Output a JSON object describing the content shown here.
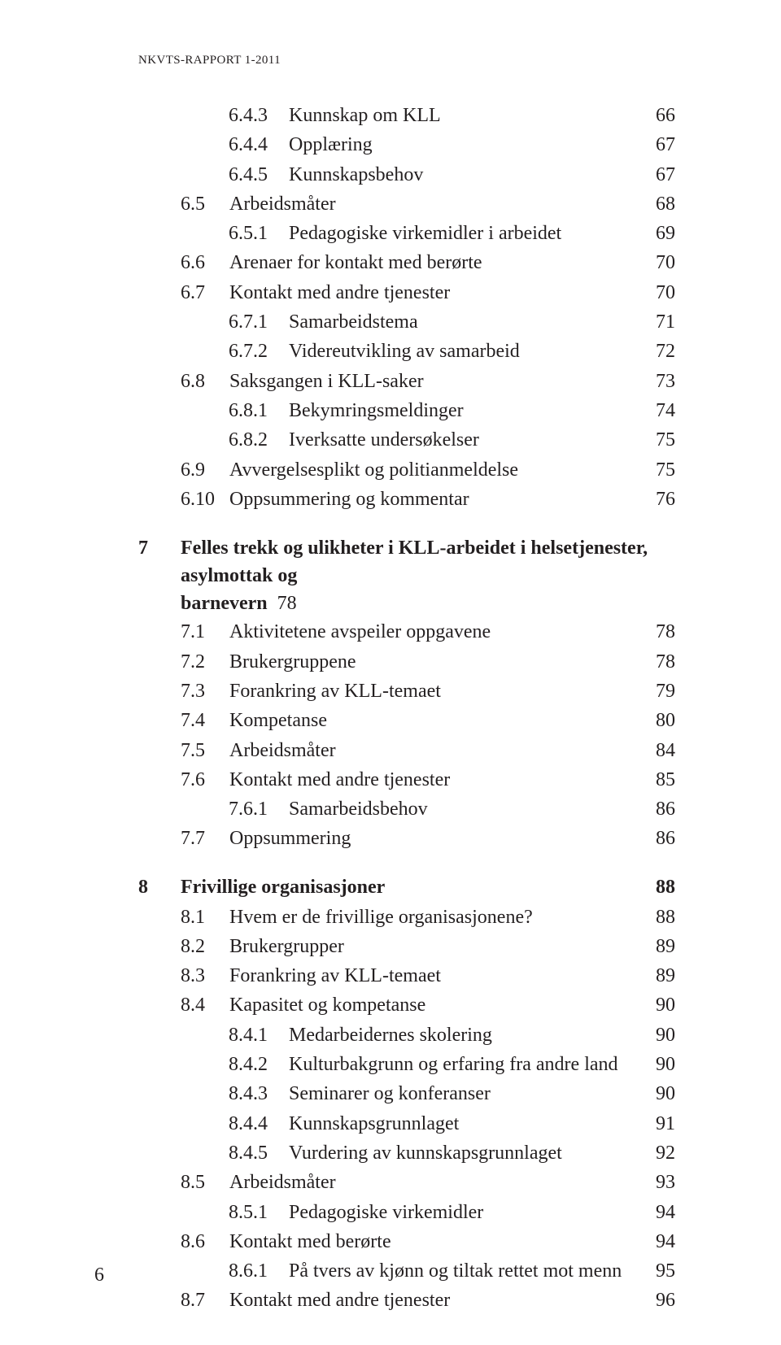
{
  "header": "NKVTS-RAPPORT 1-2011",
  "footer_page": "6",
  "sections": {
    "s643": {
      "num": "6.4.3",
      "title": "Kunnskap om KLL",
      "page": "66"
    },
    "s644": {
      "num": "6.4.4",
      "title": "Opplæring",
      "page": "67"
    },
    "s645": {
      "num": "6.4.5",
      "title": "Kunnskapsbehov",
      "page": "67"
    },
    "s65": {
      "num": "6.5",
      "title": "Arbeidsmåter",
      "page": "68"
    },
    "s651": {
      "num": "6.5.1",
      "title": "Pedagogiske virkemidler i arbeidet",
      "page": "69"
    },
    "s66": {
      "num": "6.6",
      "title": "Arenaer for kontakt med berørte",
      "page": "70"
    },
    "s67": {
      "num": "6.7",
      "title": "Kontakt med andre tjenester",
      "page": "70"
    },
    "s671": {
      "num": "6.7.1",
      "title": "Samarbeidstema",
      "page": "71"
    },
    "s672": {
      "num": "6.7.2",
      "title": "Videreutvikling av samarbeid",
      "page": "72"
    },
    "s68": {
      "num": "6.8",
      "title": "Saksgangen i KLL-saker",
      "page": "73"
    },
    "s681": {
      "num": "6.8.1",
      "title": "Bekymringsmeldinger",
      "page": "74"
    },
    "s682": {
      "num": "6.8.2",
      "title": "Iverksatte undersøkelser",
      "page": "75"
    },
    "s69": {
      "num": "6.9",
      "title": "Avvergelsesplikt og politianmeldelse",
      "page": "75"
    },
    "s610": {
      "num": "6.10",
      "title": "Oppsummering og kommentar",
      "page": "76"
    },
    "c7": {
      "num": "7",
      "title_l1": "Felles trekk og ulikheter i KLL-arbeidet i helsetjenester, asylmottak og",
      "title_l2": "barnevern",
      "page": "78"
    },
    "s71": {
      "num": "7.1",
      "title": "Aktivitetene avspeiler oppgavene",
      "page": "78"
    },
    "s72": {
      "num": "7.2",
      "title": "Brukergruppene",
      "page": "78"
    },
    "s73": {
      "num": "7.3",
      "title": "Forankring av KLL-temaet",
      "page": "79"
    },
    "s74": {
      "num": "7.4",
      "title": "Kompetanse",
      "page": "80"
    },
    "s75": {
      "num": "7.5",
      "title": "Arbeidsmåter",
      "page": "84"
    },
    "s76": {
      "num": "7.6",
      "title": "Kontakt med andre tjenester",
      "page": "85"
    },
    "s761": {
      "num": "7.6.1",
      "title": "Samarbeidsbehov",
      "page": "86"
    },
    "s77": {
      "num": "7.7",
      "title": "Oppsummering",
      "page": "86"
    },
    "c8": {
      "num": "8",
      "title": "Frivillige organisasjoner",
      "page": "88"
    },
    "s81": {
      "num": "8.1",
      "title": "Hvem er de frivillige organisasjonene?",
      "page": "88"
    },
    "s82": {
      "num": "8.2",
      "title": "Brukergrupper",
      "page": "89"
    },
    "s83": {
      "num": "8.3",
      "title": "Forankring av KLL-temaet",
      "page": "89"
    },
    "s84": {
      "num": "8.4",
      "title": "Kapasitet og kompetanse",
      "page": "90"
    },
    "s841": {
      "num": "8.4.1",
      "title": "Medarbeidernes skolering",
      "page": "90"
    },
    "s842": {
      "num": "8.4.2",
      "title": "Kulturbakgrunn og erfaring fra andre land",
      "page": "90"
    },
    "s843": {
      "num": "8.4.3",
      "title": "Seminarer og konferanser",
      "page": "90"
    },
    "s844": {
      "num": "8.4.4",
      "title": "Kunnskapsgrunnlaget",
      "page": "91"
    },
    "s845": {
      "num": "8.4.5",
      "title": "Vurdering av kunnskapsgrunnlaget",
      "page": "92"
    },
    "s85": {
      "num": "8.5",
      "title": "Arbeidsmåter",
      "page": "93"
    },
    "s851": {
      "num": "8.5.1",
      "title": "Pedagogiske virkemidler",
      "page": "94"
    },
    "s86": {
      "num": "8.6",
      "title": "Kontakt med berørte",
      "page": "94"
    },
    "s861": {
      "num": "8.6.1",
      "title": "På tvers av kjønn og tiltak rettet mot menn",
      "page": "95"
    },
    "s87": {
      "num": "8.7",
      "title": "Kontakt med andre tjenester",
      "page": "96"
    }
  }
}
